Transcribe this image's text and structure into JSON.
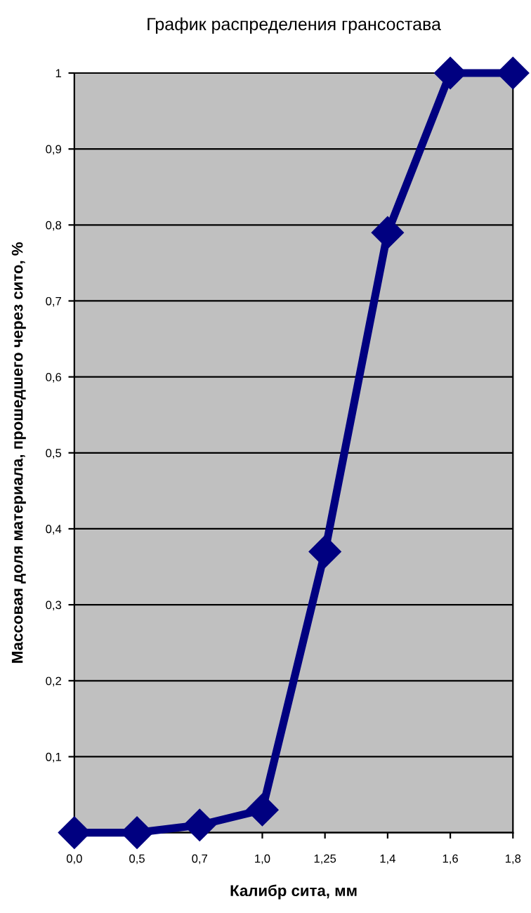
{
  "chart_data": {
    "type": "line",
    "title": "График распределения грансостава",
    "xlabel": "Калибр сита, мм",
    "ylabel": "Массовая доля материала, прошедшего через сито, %",
    "categories": [
      "0,0",
      "0,5",
      "0,7",
      "1,0",
      "1,25",
      "1,4",
      "1,6",
      "1,8"
    ],
    "series": [
      {
        "color": "#000080",
        "values": [
          0,
          0,
          0.01,
          0.03,
          0.37,
          0.79,
          1.0,
          1.0
        ]
      }
    ],
    "ylim": [
      0,
      1
    ],
    "yticks": [
      {
        "value": 0,
        "label": null
      },
      {
        "value": 0.1,
        "label": "0,1"
      },
      {
        "value": 0.2,
        "label": "0,2"
      },
      {
        "value": 0.3,
        "label": "0,3"
      },
      {
        "value": 0.4,
        "label": "0,4"
      },
      {
        "value": 0.5,
        "label": "0,5"
      },
      {
        "value": 0.6,
        "label": "0,6"
      },
      {
        "value": 0.7,
        "label": "0,7"
      },
      {
        "value": 0.8,
        "label": "0,8"
      },
      {
        "value": 0.9,
        "label": "0,9"
      },
      1
    ],
    "grid": "y",
    "marker": "diamond",
    "line_style": "solid",
    "legend": false
  }
}
